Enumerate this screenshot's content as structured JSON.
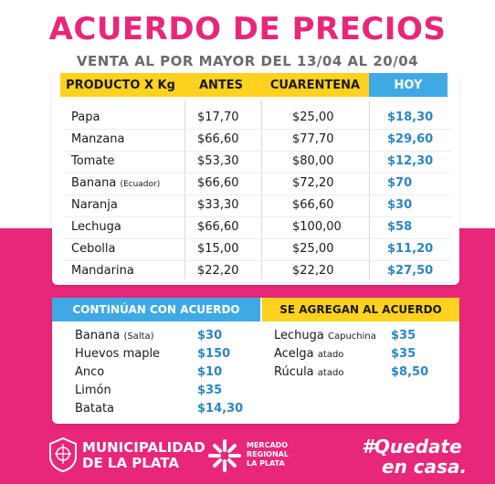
{
  "header": {
    "title": "ACUERDO DE PRECIOS",
    "subtitle": "VENTA AL POR MAYOR DEL 13/04 AL 20/04"
  },
  "table": {
    "columns": [
      "PRODUCTO X Kg",
      "ANTES",
      "CUARENTENA",
      "HOY"
    ],
    "rows": [
      {
        "producto": "Papa",
        "note": "",
        "antes": "$17,70",
        "cuarentena": "$25,00",
        "hoy": "$18,30"
      },
      {
        "producto": "Manzana",
        "note": "",
        "antes": "$66,60",
        "cuarentena": "$77,70",
        "hoy": "$29,60"
      },
      {
        "producto": "Tomate",
        "note": "",
        "antes": "$53,30",
        "cuarentena": "$80,00",
        "hoy": "$12,30"
      },
      {
        "producto": "Banana",
        "note": "(Ecuador)",
        "antes": "$66,60",
        "cuarentena": "$72,20",
        "hoy": "$70"
      },
      {
        "producto": "Naranja",
        "note": "",
        "antes": "$33,30",
        "cuarentena": "$66,60",
        "hoy": "$30"
      },
      {
        "producto": "Lechuga",
        "note": "",
        "antes": "$66,60",
        "cuarentena": "$100,00",
        "hoy": "$58"
      },
      {
        "producto": "Cebolla",
        "note": "",
        "antes": "$15,00",
        "cuarentena": "$25,00",
        "hoy": "$11,20"
      },
      {
        "producto": "Mandarina",
        "note": "",
        "antes": "$22,20",
        "cuarentena": "$22,20",
        "hoy": "$27,50"
      }
    ]
  },
  "continuan": {
    "title": "CONTINÚAN CON ACUERDO",
    "items": [
      {
        "name": "Banana",
        "note": "(Salta)",
        "price": "$30"
      },
      {
        "name": "Huevos maple",
        "note": "",
        "price": "$150"
      },
      {
        "name": "Anco",
        "note": "",
        "price": "$10"
      },
      {
        "name": "Limón",
        "note": "",
        "price": "$35"
      },
      {
        "name": "Batata",
        "note": "",
        "price": "$14,30"
      }
    ]
  },
  "agregan": {
    "title": "SE AGREGAN AL ACUERDO",
    "items": [
      {
        "name": "Lechuga",
        "note": "Capuchina",
        "price": "$35"
      },
      {
        "name": "Acelga",
        "note": "atado",
        "price": "$35"
      },
      {
        "name": "Rúcula",
        "note": "atado",
        "price": "$8,50"
      }
    ]
  },
  "footer": {
    "municipalidad_line1": "MUNICIPALIDAD",
    "municipalidad_line2": "DE LA PLATA",
    "mercado_line1": "MERCADO",
    "mercado_line2": "REGIONAL",
    "mercado_line3": "LA PLATA",
    "hashtag_line1": "#Quedate",
    "hashtag_line2": "en casa."
  },
  "colors": {
    "pink": "#e8267a",
    "yellow": "#ffd21f",
    "blue": "#3fa9e5",
    "price_blue": "#2a86c8"
  }
}
